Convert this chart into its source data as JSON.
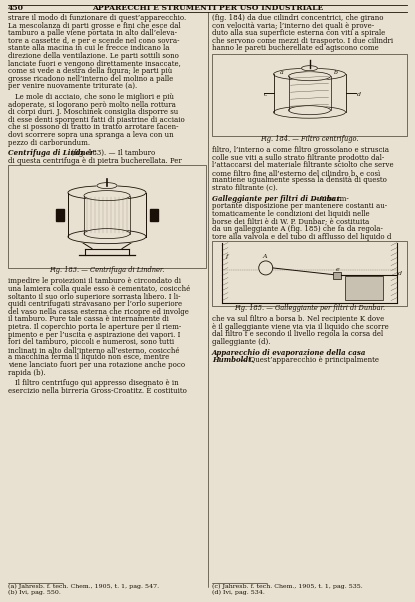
{
  "background_color": "#e8e0d0",
  "text_color": "#1a1008",
  "page_number": "450",
  "header": "APPARECCHI E STRUMENTI PER USO INDUSTRIALE",
  "col1_lines": [
    "strare il modo di funzionare di quest’apparecchio.",
    "La mescolanza di parti grosse e fini che esce dal",
    "tamburo a palle viene portata in alto dall’eleva-",
    "tore a cassette d, e per e scende nel cono sovra-",
    "stante alla macina in cui le frecce indicano la",
    "direzione della ventilazione. Le parti sottili sono",
    "lanciate fuori e vengono direttamente insaccate,",
    "come si vede a destra della figura; le parti più",
    "grosse ricadono nell’interno del molino a palle",
    "per venire nuovamente triturate (a).",
    "",
    " Le mole di acciaio, che sono le migliori e più",
    "adoperate, si logorano però molto nella rottura",
    "di corpi duri. J. Moschinek consiglia disporre su",
    "di esse denti sporgenti fatti di piastrine di acciaio",
    "che si possono di tratto in tratto arrotare facen-",
    "dovi scorrere sopra una spranga a leva con un",
    "pezzo di carborundum."
  ],
  "col2_lines_top": [
    "(fig. 184) da due cilindri concentrici, che girano",
    "con velocità varia; l’interno dei quali è prove-",
    "duto alla sua superficie esterna con viti a spirale",
    "che servono come mezzi di trasporto. I due cilindri",
    "hanno le pareti bucherellate ed agiscono come"
  ],
  "col2_lines_mid": [
    "filtro, l’interno a come filtro grossolano e struscia",
    "colle sue viti a sullo strato filtrante prodotto dal-",
    "l’attaccarsi del materiale filtrante sciolto che serve",
    "come filtro fine all’esterno del cilindro b, e così",
    "mantiene ugualmente spessa la densità di questo",
    "strato filtrante (c)."
  ],
  "col2_lines_bot": [
    "tore alla valvola e del tubo di afflusso del liquido d"
  ],
  "col2_lines_after185": [
    "che va sul filtro a borsa b. Nel recipiente K dove",
    "è il galleggiante viene via via il liquido che scorre",
    "dal filtro f e secondo il livello regola la corsa del",
    "galleggiante (d)."
  ],
  "fig183_caption": "Fig. 183. — Centrifuga di Lindner.",
  "fig184_caption": "Fig. 184. — Filtro centrifugo.",
  "fig185_caption": "Fig. 185. — Galleggiante per filtri di Dunbar.",
  "sec1_bold": "Centrifuga di Lindner",
  "sec1_rest": " (fig. 183). — Il tamburo",
  "sec1_line2": "di questa centrifuga è di pietra bucherellata. Per",
  "col1_after183": [
    "impedire le proiezioni il tamburo è circondato di",
    "una lamiera colla quale esso è cementato, cosicché",
    "soltanto il suo orlo superiore sorrasta libero. I li-",
    "quidi centrifugati stravasano per l’orlo superiore",
    "del vaso nella cassa esterna che ricopre ed involge",
    "il tamburo. Pure tale cassa è internamente di",
    "pietra. Il coperchio porta le aperture per il riem-",
    "pimento e per l’uscita e aspirazione dei vapori. I",
    "fori del tamburo, piccoli e numerosi, sono tutti",
    "inclinati in alto dall’interno all’esterno, cosicché",
    "a macchina ferma il liquido non esce, mentre",
    "viene lanciato fuori per una rotazione anche poco",
    "rapida (b).",
    "",
    " Il filtro centrifugo qui appresso disegnato è in",
    "esercizio nella birreria Gross-Croatitz. È costituito"
  ],
  "sec2_bold": "Galleggiante per filtri di Dunbar.",
  "sec2_rest": " — Una im-",
  "sec2_lines": [
    "portante disposizione per mantenere costanti au-",
    "tomaticamente le condizioni dei liquidi nelle",
    "borse dei filtri è di W. P. Dunbar; è costituita",
    "da un galleggiante A (fig. 185) che fa da regola-"
  ],
  "sec3_bold": "Apparecchio di evaporazione della casa",
  "sec3_bold2": "Humboldt.",
  "sec3_rest": " — Quest’apparecchio è principalmente",
  "fn1": "(a) Jahresb. f. tech. Chem., 1905, t. 1, pag. 547.",
  "fn2": "(b) Ivi, pag. 550.",
  "fn3": "(c) Jahresb. f. tech. Chem., 1905, t. 1, pag. 535.",
  "fn4": "(d) Ivi, pag. 534."
}
